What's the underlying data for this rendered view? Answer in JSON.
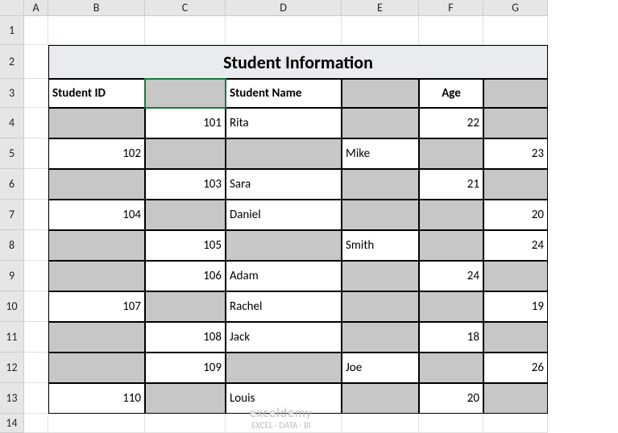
{
  "columns": [
    "",
    "A",
    "B",
    "C",
    "D",
    "E",
    "F",
    "G"
  ],
  "rows": [
    "1",
    "2",
    "3",
    "4",
    "5",
    "6",
    "7",
    "8",
    "9",
    "10",
    "11",
    "12",
    "13",
    "14"
  ],
  "title": "Student Information",
  "headers": {
    "b": "Student ID",
    "d": "Student Name",
    "f": "Age"
  },
  "data": {
    "r4": {
      "c": "101",
      "d": "Rita",
      "f": "22"
    },
    "r5": {
      "b": "102",
      "e": "Mike",
      "g": "23"
    },
    "r6": {
      "c": "103",
      "d": "Sara",
      "f": "21"
    },
    "r7": {
      "b": "104",
      "d": "Daniel",
      "g": "20"
    },
    "r8": {
      "c": "105",
      "e": "Smith",
      "g": "24"
    },
    "r9": {
      "c": "106",
      "d": "Adam",
      "f": "24"
    },
    "r10": {
      "b": "107",
      "d": "Rachel",
      "g": "19"
    },
    "r11": {
      "c": "108",
      "d": "Jack",
      "f": "18"
    },
    "r12": {
      "c": "109",
      "e": "Joe",
      "g": "26"
    },
    "r13": {
      "b": "110",
      "d": "Louis",
      "f": "20"
    }
  },
  "watermark": {
    "brand": "exceldemy",
    "tagline": "EXCEL · DATA · BI"
  }
}
